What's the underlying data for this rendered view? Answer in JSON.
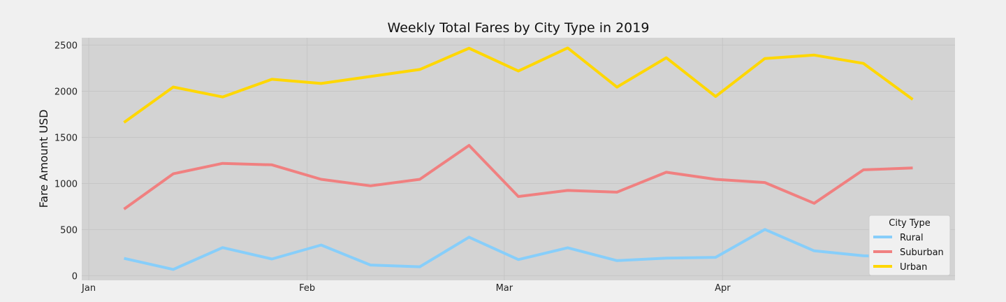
{
  "chart_data": {
    "type": "line",
    "title": "Weekly Total Fares by City Type in 2019",
    "xlabel": "",
    "ylabel": "Fare Amount USD",
    "x": [
      "2019-01-06",
      "2019-01-13",
      "2019-01-20",
      "2019-01-27",
      "2019-02-03",
      "2019-02-10",
      "2019-02-17",
      "2019-02-24",
      "2019-03-03",
      "2019-03-10",
      "2019-03-17",
      "2019-03-24",
      "2019-03-31",
      "2019-04-07",
      "2019-04-14",
      "2019-04-21",
      "2019-04-28"
    ],
    "x_ticks": [
      {
        "date": "2019-01-01",
        "label": "Jan"
      },
      {
        "date": "2019-02-01",
        "label": "Feb"
      },
      {
        "date": "2019-03-01",
        "label": "Mar"
      },
      {
        "date": "2019-04-01",
        "label": "Apr"
      }
    ],
    "xlim": [
      "2018-12-31",
      "2019-05-04"
    ],
    "ylim": [
      -50,
      2580
    ],
    "y_ticks": [
      0,
      500,
      1000,
      1500,
      2000,
      2500
    ],
    "grid": true,
    "legend": {
      "title": "City Type",
      "placement": "lower right"
    },
    "series": [
      {
        "name": "Rural",
        "color": "#87cefa",
        "values": [
          188,
          68,
          305,
          181,
          333,
          116,
          97,
          418,
          175,
          303,
          164,
          190,
          199,
          502,
          270,
          216,
          200
        ]
      },
      {
        "name": "Suburban",
        "color": "#f08080",
        "values": [
          722,
          1105,
          1218,
          1202,
          1045,
          975,
          1045,
          1413,
          859,
          925,
          906,
          1122,
          1045,
          1010,
          785,
          1148,
          1168
        ]
      },
      {
        "name": "Urban",
        "color": "#ffd700",
        "values": [
          1662,
          2046,
          1938,
          2130,
          2084,
          2160,
          2236,
          2466,
          2219,
          2469,
          2045,
          2363,
          1943,
          2355,
          2392,
          2302,
          1911
        ]
      }
    ]
  }
}
